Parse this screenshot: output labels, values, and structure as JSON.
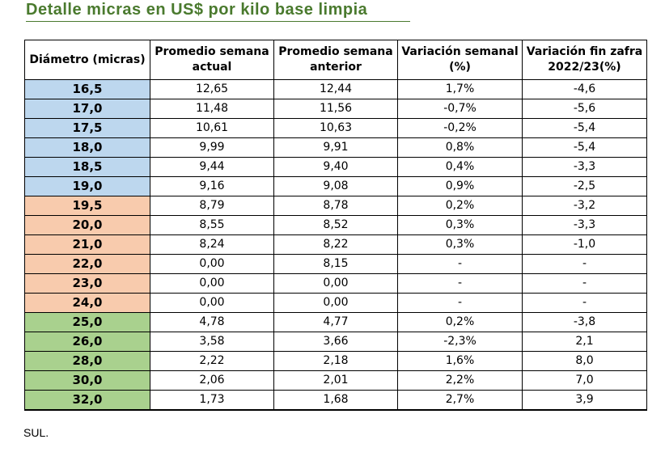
{
  "title": "Detalle micras en US$ por kilo base limpia",
  "source": "SUL.",
  "colors": {
    "blue": "#bdd7ee",
    "orange": "#f8cbad",
    "green": "#a9d18e",
    "title": "#4a7a2e"
  },
  "table": {
    "headers": [
      "Diámetro (micras)",
      "Promedio semana actual",
      "Promedio semana anterior",
      "Variación semanal (%)",
      "Variación fin zafra 2022/23(%)"
    ],
    "rows": [
      {
        "group": "blue",
        "cells": [
          "16,5",
          "12,65",
          "12,44",
          "1,7%",
          "-4,6"
        ]
      },
      {
        "group": "blue",
        "cells": [
          "17,0",
          "11,48",
          "11,56",
          "-0,7%",
          "-5,6"
        ]
      },
      {
        "group": "blue",
        "cells": [
          "17,5",
          "10,61",
          "10,63",
          "-0,2%",
          "-5,4"
        ]
      },
      {
        "group": "blue",
        "cells": [
          "18,0",
          "9,99",
          "9,91",
          "0,8%",
          "-5,4"
        ]
      },
      {
        "group": "blue",
        "cells": [
          "18,5",
          "9,44",
          "9,40",
          "0,4%",
          "-3,3"
        ]
      },
      {
        "group": "blue",
        "cells": [
          "19,0",
          "9,16",
          "9,08",
          "0,9%",
          "-2,5"
        ]
      },
      {
        "group": "orange",
        "cells": [
          "19,5",
          "8,79",
          "8,78",
          "0,2%",
          "-3,2"
        ]
      },
      {
        "group": "orange",
        "cells": [
          "20,0",
          "8,55",
          "8,52",
          "0,3%",
          "-3,3"
        ]
      },
      {
        "group": "orange",
        "cells": [
          "21,0",
          "8,24",
          "8,22",
          "0,3%",
          "-1,0"
        ]
      },
      {
        "group": "orange",
        "cells": [
          "22,0",
          "0,00",
          "8,15",
          "-",
          "-"
        ]
      },
      {
        "group": "orange",
        "cells": [
          "23,0",
          "0,00",
          "0,00",
          "-",
          "-"
        ]
      },
      {
        "group": "orange",
        "cells": [
          "24,0",
          "0,00",
          "0,00",
          "-",
          "-"
        ]
      },
      {
        "group": "green",
        "cells": [
          "25,0",
          "4,78",
          "4,77",
          "0,2%",
          "-3,8"
        ]
      },
      {
        "group": "green",
        "cells": [
          "26,0",
          "3,58",
          "3,66",
          "-2,3%",
          "2,1"
        ]
      },
      {
        "group": "green",
        "cells": [
          "28,0",
          "2,22",
          "2,18",
          "1,6%",
          "8,0"
        ]
      },
      {
        "group": "green",
        "cells": [
          "30,0",
          "2,06",
          "2,01",
          "2,2%",
          "7,0"
        ]
      },
      {
        "group": "green",
        "cells": [
          "32,0",
          "1,73",
          "1,68",
          "2,7%",
          "3,9"
        ]
      }
    ]
  }
}
